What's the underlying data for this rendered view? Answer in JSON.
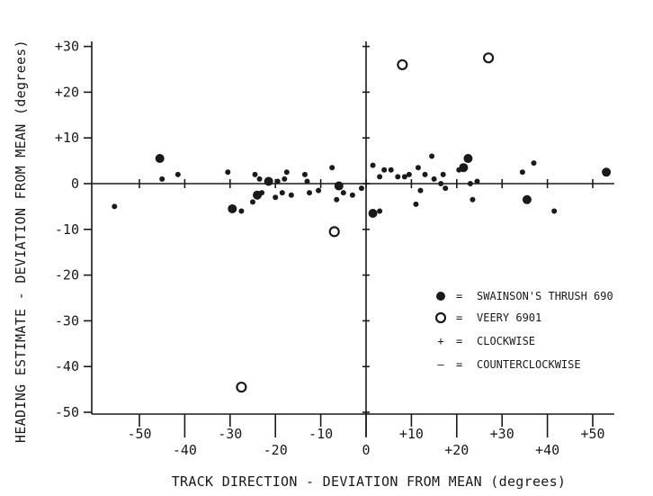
{
  "chart_data": {
    "type": "scatter",
    "title": "",
    "xlabel": "TRACK DIRECTION - DEVIATION FROM MEAN (degrees)",
    "ylabel": "HEADING ESTIMATE - DEVIATION FROM MEAN (degrees)",
    "xlim": [
      -60,
      55
    ],
    "ylim": [
      -50,
      30
    ],
    "grid": false,
    "x_tick_labels": [
      {
        "value": -50,
        "label": "-50",
        "row": "upper"
      },
      {
        "value": -40,
        "label": "-40",
        "row": "lower"
      },
      {
        "value": -30,
        "label": "-30",
        "row": "upper"
      },
      {
        "value": -20,
        "label": "-20",
        "row": "lower"
      },
      {
        "value": -10,
        "label": "-10",
        "row": "upper"
      },
      {
        "value": 0,
        "label": "0",
        "row": "lower"
      },
      {
        "value": 10,
        "label": "+10",
        "row": "upper"
      },
      {
        "value": 20,
        "label": "+20",
        "row": "lower"
      },
      {
        "value": 30,
        "label": "+30",
        "row": "upper"
      },
      {
        "value": 40,
        "label": "+40",
        "row": "lower"
      },
      {
        "value": 50,
        "label": "+50",
        "row": "upper"
      }
    ],
    "y_tick_labels": [
      {
        "value": 30,
        "label": "+30"
      },
      {
        "value": 20,
        "label": "+20"
      },
      {
        "value": 10,
        "label": "+10"
      },
      {
        "value": 0,
        "label": "0"
      },
      {
        "value": -10,
        "label": "-10"
      },
      {
        "value": -20,
        "label": "-20"
      },
      {
        "value": -30,
        "label": "-30"
      },
      {
        "value": -40,
        "label": "-40"
      },
      {
        "value": -50,
        "label": "-50"
      }
    ],
    "legend": {
      "position": "lower-right",
      "entries": [
        {
          "symbol": "filled-circle",
          "label": "SWAINSON'S THRUSH 690"
        },
        {
          "symbol": "open-circle",
          "label": "VEERY 6901"
        },
        {
          "symbol": "+",
          "label": "CLOCKWISE"
        },
        {
          "symbol": "–",
          "label": "COUNTERCLOCKWISE"
        }
      ]
    },
    "series": [
      {
        "name": "SWAINSON'S THRUSH 690",
        "marker": "filled-circle-large",
        "points": [
          {
            "x": -45.5,
            "y": 5.5
          },
          {
            "x": -29.5,
            "y": -5.5
          },
          {
            "x": -24.0,
            "y": -2.5
          },
          {
            "x": -21.5,
            "y": 0.5
          },
          {
            "x": -6.0,
            "y": -0.5
          },
          {
            "x": 1.5,
            "y": -6.5
          },
          {
            "x": 21.5,
            "y": 3.5
          },
          {
            "x": 22.5,
            "y": 5.5
          },
          {
            "x": 35.5,
            "y": -3.5
          },
          {
            "x": 53.0,
            "y": 2.5
          }
        ]
      },
      {
        "name": "VEERY 6901",
        "marker": "open-circle",
        "points": [
          {
            "x": -27.5,
            "y": -44.5
          },
          {
            "x": -7.0,
            "y": -10.5
          },
          {
            "x": 8.0,
            "y": 26.0
          },
          {
            "x": 27.0,
            "y": 27.5
          }
        ]
      },
      {
        "name": "",
        "marker": "filled-circle-small",
        "points": [
          {
            "x": -55.5,
            "y": -5.0
          },
          {
            "x": -45.0,
            "y": 1.0
          },
          {
            "x": -41.5,
            "y": 2.0
          },
          {
            "x": -30.5,
            "y": 2.5
          },
          {
            "x": -27.5,
            "y": -6.0
          },
          {
            "x": -25.0,
            "y": -4.0
          },
          {
            "x": -24.5,
            "y": 2.0
          },
          {
            "x": -23.5,
            "y": 1.0
          },
          {
            "x": -23.0,
            "y": -2.0
          },
          {
            "x": -20.0,
            "y": -3.0
          },
          {
            "x": -19.5,
            "y": 0.5
          },
          {
            "x": -18.5,
            "y": -2.0
          },
          {
            "x": -18.0,
            "y": 1.0
          },
          {
            "x": -17.5,
            "y": 2.5
          },
          {
            "x": -16.5,
            "y": -2.5
          },
          {
            "x": -13.5,
            "y": 2.0
          },
          {
            "x": -13.0,
            "y": 0.5
          },
          {
            "x": -12.5,
            "y": -2.0
          },
          {
            "x": -10.5,
            "y": -1.5
          },
          {
            "x": -7.5,
            "y": 3.5
          },
          {
            "x": -6.5,
            "y": -3.5
          },
          {
            "x": -5.0,
            "y": -2.0
          },
          {
            "x": -3.0,
            "y": -2.5
          },
          {
            "x": -1.0,
            "y": -1.0
          },
          {
            "x": 1.5,
            "y": 4.0
          },
          {
            "x": 3.0,
            "y": 1.5
          },
          {
            "x": 3.0,
            "y": -6.0
          },
          {
            "x": 4.0,
            "y": 3.0
          },
          {
            "x": 5.5,
            "y": 3.0
          },
          {
            "x": 7.0,
            "y": 1.5
          },
          {
            "x": 8.5,
            "y": 1.5
          },
          {
            "x": 9.5,
            "y": 2.0
          },
          {
            "x": 11.0,
            "y": -4.5
          },
          {
            "x": 11.5,
            "y": 3.5
          },
          {
            "x": 12.0,
            "y": -1.5
          },
          {
            "x": 13.0,
            "y": 2.0
          },
          {
            "x": 14.5,
            "y": 6.0
          },
          {
            "x": 15.0,
            "y": 1.0
          },
          {
            "x": 16.5,
            "y": 0.0
          },
          {
            "x": 17.0,
            "y": 2.0
          },
          {
            "x": 17.5,
            "y": -1.0
          },
          {
            "x": 20.5,
            "y": 3.0
          },
          {
            "x": 23.0,
            "y": 0.0
          },
          {
            "x": 23.5,
            "y": -3.5
          },
          {
            "x": 24.5,
            "y": 0.5
          },
          {
            "x": 34.5,
            "y": 2.5
          },
          {
            "x": 37.0,
            "y": 4.5
          },
          {
            "x": 41.5,
            "y": -6.0
          }
        ]
      }
    ]
  }
}
